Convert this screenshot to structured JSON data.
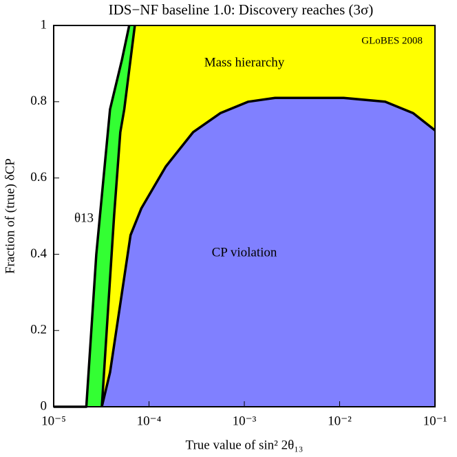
{
  "chart_data": {
    "type": "area",
    "title": "IDS−NF baseline 1.0: Discovery reaches (3σ)",
    "x_label": "True value of sin² 2θ₁₃",
    "y_label": "Fraction of (true) δCP",
    "annotation": "GLoBES 2008",
    "x_scale": "log",
    "xlim": [
      1e-05,
      0.1
    ],
    "ylim": [
      0,
      1
    ],
    "xticks": [
      {
        "value": 1e-05,
        "label": "10⁻⁵"
      },
      {
        "value": 0.0001,
        "label": "10⁻⁴"
      },
      {
        "value": 0.001,
        "label": "10⁻³"
      },
      {
        "value": 0.01,
        "label": "10⁻²"
      },
      {
        "value": 0.1,
        "label": "10⁻¹"
      }
    ],
    "yticks": [
      0,
      0.2,
      0.4,
      0.6,
      0.8,
      1
    ],
    "series": [
      {
        "name": "θ13",
        "color": "#33ff33",
        "x": [
          1e-05,
          2.2e-05,
          2.8e-05,
          3.9e-05,
          5.2e-05,
          6.2e-05
        ],
        "values": [
          0,
          0,
          0.4,
          0.78,
          0.91,
          1
        ]
      },
      {
        "name": "Mass hierarchy",
        "color": "#ffff00",
        "x": [
          3.2e-05,
          3.6e-05,
          4.3e-05,
          5e-05,
          5.5e-05,
          7.1e-05
        ],
        "values": [
          0,
          0.2,
          0.5,
          0.72,
          0.78,
          1
        ]
      },
      {
        "name": "CP violation",
        "color": "#8080ff",
        "x": [
          3.2e-05,
          3.9e-05,
          5e-05,
          6.4e-05,
          8.3e-05,
          0.00015,
          0.00029,
          0.00056,
          0.0011,
          0.0021,
          0.011,
          0.03,
          0.059,
          0.1
        ],
        "values": [
          0,
          0.09,
          0.27,
          0.45,
          0.52,
          0.63,
          0.72,
          0.77,
          0.8,
          0.81,
          0.81,
          0.8,
          0.77,
          0.725
        ]
      }
    ]
  }
}
